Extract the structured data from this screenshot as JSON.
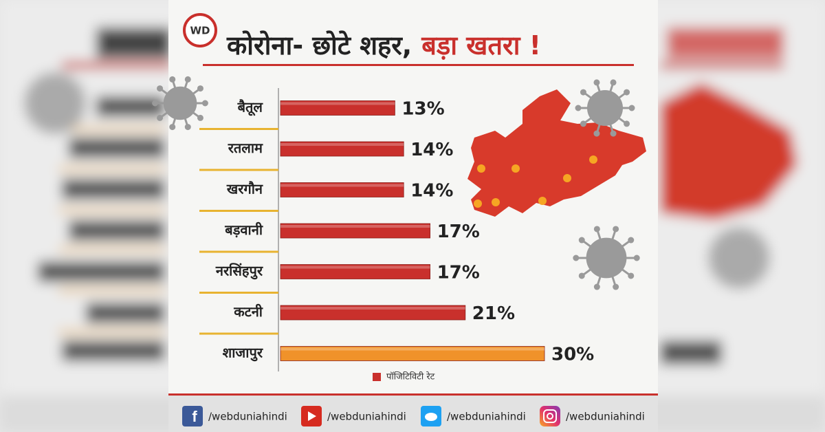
{
  "logo": "WD",
  "chart_data": {
    "type": "bar",
    "orientation": "horizontal",
    "title": "कोरोना- छोटे शहर,",
    "title_highlight": "बड़ा खतरा !",
    "categories": [
      "बैतूल",
      "रतलाम",
      "खरगौन",
      "बड़वानी",
      "नरसिंहपुर",
      "कटनी",
      "शाजापुर"
    ],
    "series": [
      {
        "name": "पॉजिटिविटी रेट",
        "color": "#c9302c",
        "values": [
          13,
          14,
          14,
          17,
          17,
          21,
          30
        ],
        "value_labels": [
          "13%",
          "14%",
          "14%",
          "17%",
          "17%",
          "21%",
          "30%"
        ],
        "colors": [
          "#c9302c",
          "#c9302c",
          "#c9302c",
          "#c9302c",
          "#c9302c",
          "#c9302c",
          "#f0922a"
        ]
      }
    ],
    "legend": "bottom"
  },
  "footer": {
    "links": [
      "/webduniahindi",
      "/webduniahindi",
      "/webduniahindi",
      "/webduniahindi"
    ]
  }
}
